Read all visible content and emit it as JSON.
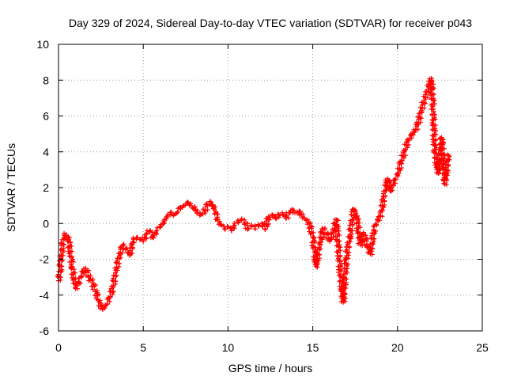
{
  "chart_data": {
    "type": "scatter",
    "title": "Day 329 of 2024, Sidereal Day-to-day VTEC variation (SDTVAR) for receiver p043",
    "xlabel": "GPS time / hours",
    "ylabel": "SDTVAR / TECUs",
    "xlim": [
      0,
      25
    ],
    "ylim": [
      -6,
      10
    ],
    "xticks": [
      0,
      5,
      10,
      15,
      20,
      25
    ],
    "yticks": [
      -6,
      -4,
      -2,
      0,
      2,
      4,
      6,
      8,
      10
    ],
    "grid": true,
    "marker": "+",
    "color": "#ff0000",
    "series": [
      {
        "name": "SDTVAR",
        "x": [
          0.0,
          0.1,
          0.2,
          0.3,
          0.45,
          0.6,
          0.8,
          1.0,
          1.2,
          1.4,
          1.6,
          1.8,
          2.0,
          2.2,
          2.4,
          2.6,
          2.8,
          3.0,
          3.2,
          3.4,
          3.6,
          3.8,
          4.0,
          4.2,
          4.4,
          4.6,
          4.8,
          5.0,
          5.2,
          5.4,
          5.6,
          5.8,
          6.0,
          6.2,
          6.4,
          6.6,
          6.8,
          7.0,
          7.2,
          7.4,
          7.6,
          7.8,
          8.0,
          8.2,
          8.4,
          8.6,
          8.8,
          9.0,
          9.2,
          9.4,
          9.6,
          9.8,
          10.0,
          10.2,
          10.4,
          10.6,
          10.8,
          11.0,
          11.2,
          11.4,
          11.6,
          11.8,
          12.0,
          12.2,
          12.4,
          12.6,
          12.8,
          13.0,
          13.2,
          13.4,
          13.6,
          13.8,
          14.0,
          14.2,
          14.4,
          14.6,
          14.8,
          15.0,
          15.1,
          15.2,
          15.4,
          15.6,
          15.8,
          16.0,
          16.2,
          16.4,
          16.6,
          16.8,
          17.0,
          17.2,
          17.4,
          17.6,
          17.8,
          18.0,
          18.2,
          18.4,
          18.6,
          18.8,
          19.0,
          19.2,
          19.4,
          19.6,
          19.8,
          20.0,
          20.2,
          20.4,
          20.6,
          20.8,
          21.0,
          21.2,
          21.4,
          21.6,
          21.8,
          22.0,
          22.1,
          22.2,
          22.4,
          22.6,
          22.8,
          23.0
        ],
        "y": [
          -3.2,
          -2.6,
          -1.4,
          -0.8,
          -0.6,
          -0.9,
          -2.4,
          -3.6,
          -3.3,
          -2.7,
          -2.5,
          -3.0,
          -3.3,
          -3.8,
          -4.4,
          -4.8,
          -4.6,
          -4.2,
          -3.6,
          -2.6,
          -1.8,
          -1.2,
          -1.4,
          -1.8,
          -1.0,
          -0.8,
          -0.9,
          -1.0,
          -0.6,
          -0.4,
          -0.8,
          -0.4,
          -0.2,
          0.0,
          0.4,
          0.6,
          0.5,
          0.6,
          0.9,
          1.0,
          1.2,
          1.1,
          0.9,
          0.6,
          0.5,
          0.7,
          1.0,
          1.2,
          0.8,
          0.2,
          -0.1,
          -0.3,
          -0.2,
          -0.4,
          -0.1,
          0.1,
          0.2,
          0.0,
          -0.3,
          -0.1,
          -0.3,
          -0.1,
          0.0,
          -0.3,
          0.4,
          0.5,
          0.3,
          0.5,
          0.6,
          0.3,
          0.6,
          0.8,
          0.6,
          0.7,
          0.3,
          0.2,
          0.0,
          -0.8,
          -1.6,
          -2.4,
          -1.2,
          -0.3,
          -0.6,
          -1.0,
          -0.5,
          0.2,
          -2.6,
          -4.4,
          -1.8,
          -0.6,
          0.8,
          0.4,
          -1.2,
          -0.5,
          -1.2,
          -1.7,
          -0.4,
          0.2,
          0.4,
          1.5,
          2.5,
          1.8,
          2.4,
          2.7,
          3.4,
          4.0,
          4.6,
          4.9,
          5.1,
          5.5,
          6.3,
          6.9,
          7.5,
          8.1,
          6.4,
          4.0,
          2.8,
          4.8,
          2.2,
          3.8
        ]
      }
    ]
  }
}
